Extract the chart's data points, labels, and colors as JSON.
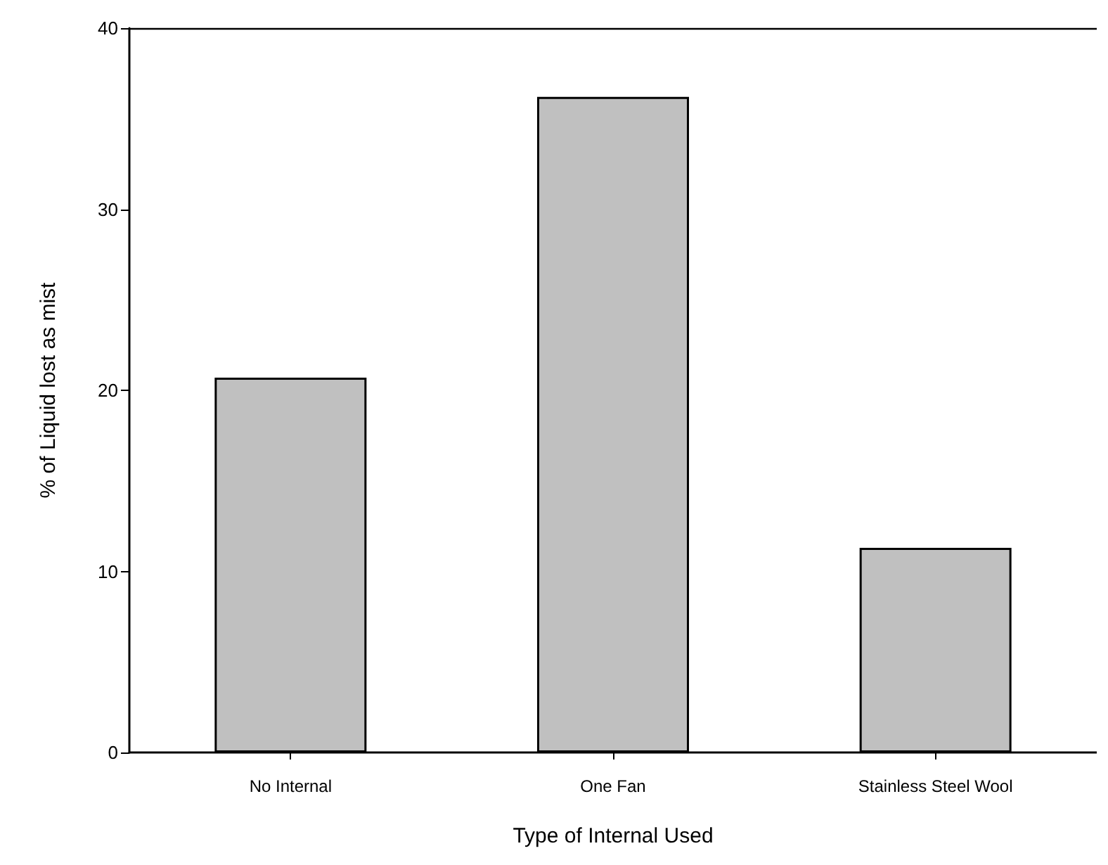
{
  "chart_data": {
    "type": "bar",
    "xlabel": "Type of Internal Used",
    "ylabel": "% of Liquid lost as mist",
    "categories": [
      "No Internal",
      "One Fan",
      "Stainless Steel Wool"
    ],
    "values": [
      20.7,
      36.2,
      11.3
    ],
    "color": "#c0c0c0",
    "ylim": [
      0,
      40
    ],
    "yticks": [
      0,
      10,
      20,
      30,
      40
    ],
    "grid": false
  }
}
